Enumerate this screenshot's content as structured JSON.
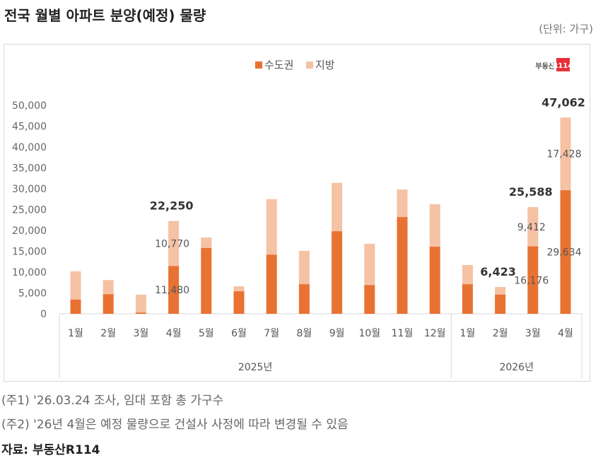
{
  "title": "전국 월별 아파트 분양(예정) 물량",
  "unit": "(단위: 가구)",
  "logo": "부동산R114",
  "colors": {
    "metro": "#E87232",
    "local": "#F5C2A4"
  },
  "chart_data": {
    "type": "bar",
    "stacked": true,
    "ylim": [
      0,
      50000
    ],
    "yticks": [
      "0",
      "5,000",
      "10,000",
      "15,000",
      "20,000",
      "25,000",
      "30,000",
      "35,000",
      "40,000",
      "45,000",
      "50,000"
    ],
    "categories": [
      "1월",
      "2월",
      "3월",
      "4월",
      "5월",
      "6월",
      "7월",
      "8월",
      "9월",
      "10월",
      "11월",
      "12월",
      "1월",
      "2월",
      "3월",
      "4월"
    ],
    "groups": [
      {
        "label": "2025년",
        "count": 12
      },
      {
        "label": "2026년",
        "count": 4
      }
    ],
    "legend_position": "top",
    "series": [
      {
        "name": "수도권",
        "values": [
          3400,
          4700,
          300,
          11480,
          15800,
          5400,
          14200,
          7100,
          19800,
          6900,
          23200,
          16100,
          7100,
          4600,
          16176,
          29634
        ]
      },
      {
        "name": "지방",
        "values": [
          6800,
          3400,
          4300,
          10770,
          2500,
          1200,
          13300,
          8000,
          11600,
          9900,
          6600,
          10200,
          4600,
          1823,
          9412,
          17428
        ]
      }
    ],
    "labels": [
      {
        "index": 3,
        "total": "22,250",
        "metro": "11,480",
        "local": "10,770"
      },
      {
        "index": 13,
        "total": "6,423"
      },
      {
        "index": 14,
        "total": "25,588",
        "metro": "16,176",
        "local": "9,412"
      },
      {
        "index": 15,
        "total": "47,062",
        "metro": "29,634",
        "local": "17,428"
      }
    ]
  },
  "notes": [
    "(주1) '26.03.24 조사, 임대 포함 총 가구수",
    "(주2) '26년 4월은 예정 물량으로 건설사 사정에 따라 변경될 수 있음"
  ],
  "source": "자료: 부동산R114"
}
